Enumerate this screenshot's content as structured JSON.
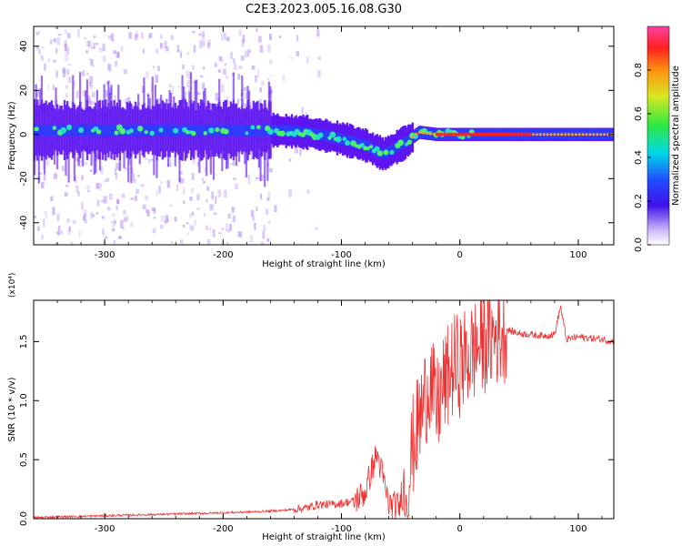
{
  "title": "C2E3.2023.005.16.08.G30",
  "colors": {
    "snr_line": "#ee3333",
    "spectro_core": "#ff2020",
    "spectro_mid": "#22e0c0",
    "spectro_outer": "#5a10f0",
    "spectro_faint": "#b08cf0"
  },
  "chart_data": [
    {
      "type": "heatmap",
      "title": "C2E3.2023.005.16.08.G30",
      "xlabel": "Height of straight line (km)",
      "ylabel": "Frequency (Hz)",
      "xlim": [
        -360,
        130
      ],
      "ylim": [
        -50,
        49
      ],
      "x_ticks": [
        -300,
        -200,
        -100,
        0,
        100
      ],
      "y_ticks": [
        -40,
        -20,
        0,
        20,
        40
      ],
      "x_tick_labels": [
        "-300",
        "-200",
        "-100",
        "0",
        "100"
      ],
      "y_tick_labels": [
        "-40",
        "-20",
        "0",
        "20",
        "40"
      ],
      "colorbar": {
        "label": "Normalized spectral amplitude",
        "range": [
          0.0,
          1.0
        ],
        "ticks": [
          "0.0",
          "0.2",
          "0.4",
          "0.6",
          "0.8"
        ],
        "colormap": "rainbow"
      },
      "ridge": {
        "x": [
          -360,
          -300,
          -200,
          -160,
          -130,
          -100,
          -80,
          -65,
          -55,
          -45,
          -35,
          -20,
          0,
          50,
          100,
          130
        ],
        "center_freq": [
          2,
          2,
          2,
          2,
          1,
          -2,
          -5,
          -9,
          -6,
          -3,
          1,
          0,
          0,
          0,
          0,
          0
        ],
        "noise_until_x": -160
      }
    },
    {
      "type": "line",
      "xlabel": "Height of straight line (km)",
      "ylabel": "SNR (10 * v/v)",
      "y_multiplier": "(x10⁴)",
      "xlim": [
        -360,
        130
      ],
      "ylim": [
        0.0,
        1.85
      ],
      "x_ticks": [
        -300,
        -200,
        -100,
        0,
        100
      ],
      "y_ticks": [
        0.0,
        0.5,
        1.0,
        1.5
      ],
      "x_tick_labels": [
        "-300",
        "-200",
        "-100",
        "0",
        "100"
      ],
      "y_tick_labels": [
        "0.0",
        "0.5",
        "1.0",
        "1.5"
      ],
      "series": [
        {
          "x": [
            -360,
            -320,
            -280,
            -240,
            -200,
            -170,
            -150,
            -130,
            -120,
            -110,
            -100,
            -90,
            -80,
            -75,
            -70,
            -65,
            -60,
            -50,
            -45,
            -40,
            -35,
            -30,
            -25,
            -20,
            -15,
            -10,
            -5,
            0,
            10,
            20,
            30,
            40,
            50,
            60,
            70,
            80,
            85,
            90,
            100,
            110,
            120,
            130
          ],
          "y": [
            0.01,
            0.02,
            0.03,
            0.04,
            0.05,
            0.06,
            0.07,
            0.09,
            0.12,
            0.12,
            0.13,
            0.15,
            0.22,
            0.4,
            0.55,
            0.35,
            0.12,
            0.1,
            0.2,
            0.6,
            0.8,
            1.0,
            1.2,
            0.9,
            1.1,
            1.2,
            1.3,
            1.3,
            1.4,
            1.5,
            1.55,
            1.6,
            1.57,
            1.56,
            1.55,
            1.56,
            1.8,
            1.52,
            1.54,
            1.53,
            1.52,
            1.5
          ]
        }
      ]
    }
  ]
}
